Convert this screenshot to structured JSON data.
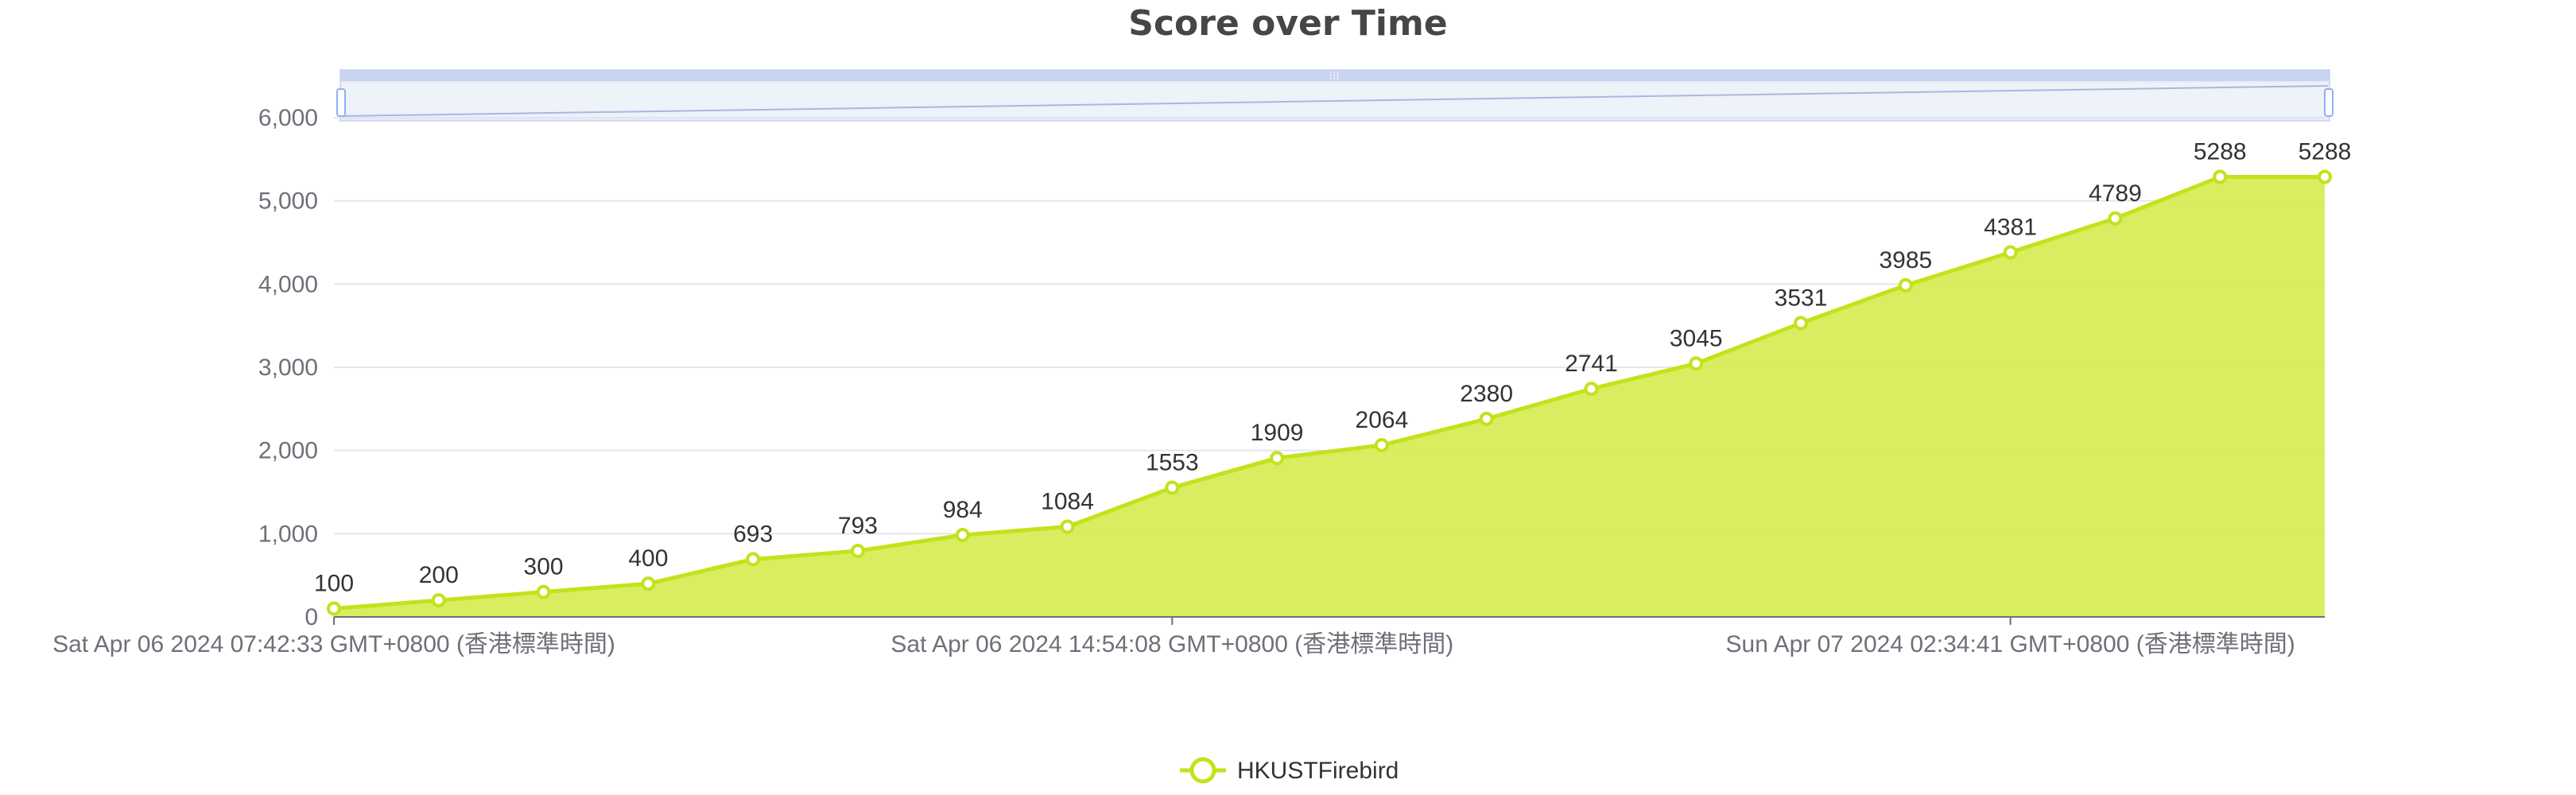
{
  "chart_data": {
    "type": "area",
    "title": "Score over Time",
    "ylim": [
      0,
      6000
    ],
    "yticks": [
      "0",
      "1,000",
      "2,000",
      "3,000",
      "4,000",
      "5,000",
      "6,000"
    ],
    "xtick_labels": [
      "Sat Apr 06 2024 07:42:33 GMT+0800 (香港標準時間)",
      "Sat Apr 06 2024 14:54:08 GMT+0800 (香港標準時間)",
      "Sun Apr 07 2024 02:34:41 GMT+0800 (香港標準時間)"
    ],
    "grid": true,
    "legend_position": "bottom-center",
    "series": [
      {
        "name": "HKUSTFirebird",
        "color": "#c3e21b",
        "fill": "#d8ec57",
        "values": [
          100,
          200,
          300,
          400,
          693,
          793,
          984,
          1084,
          1553,
          1909,
          2064,
          2380,
          2741,
          3045,
          3531,
          3985,
          4381,
          4789,
          5288,
          5288
        ]
      }
    ]
  }
}
